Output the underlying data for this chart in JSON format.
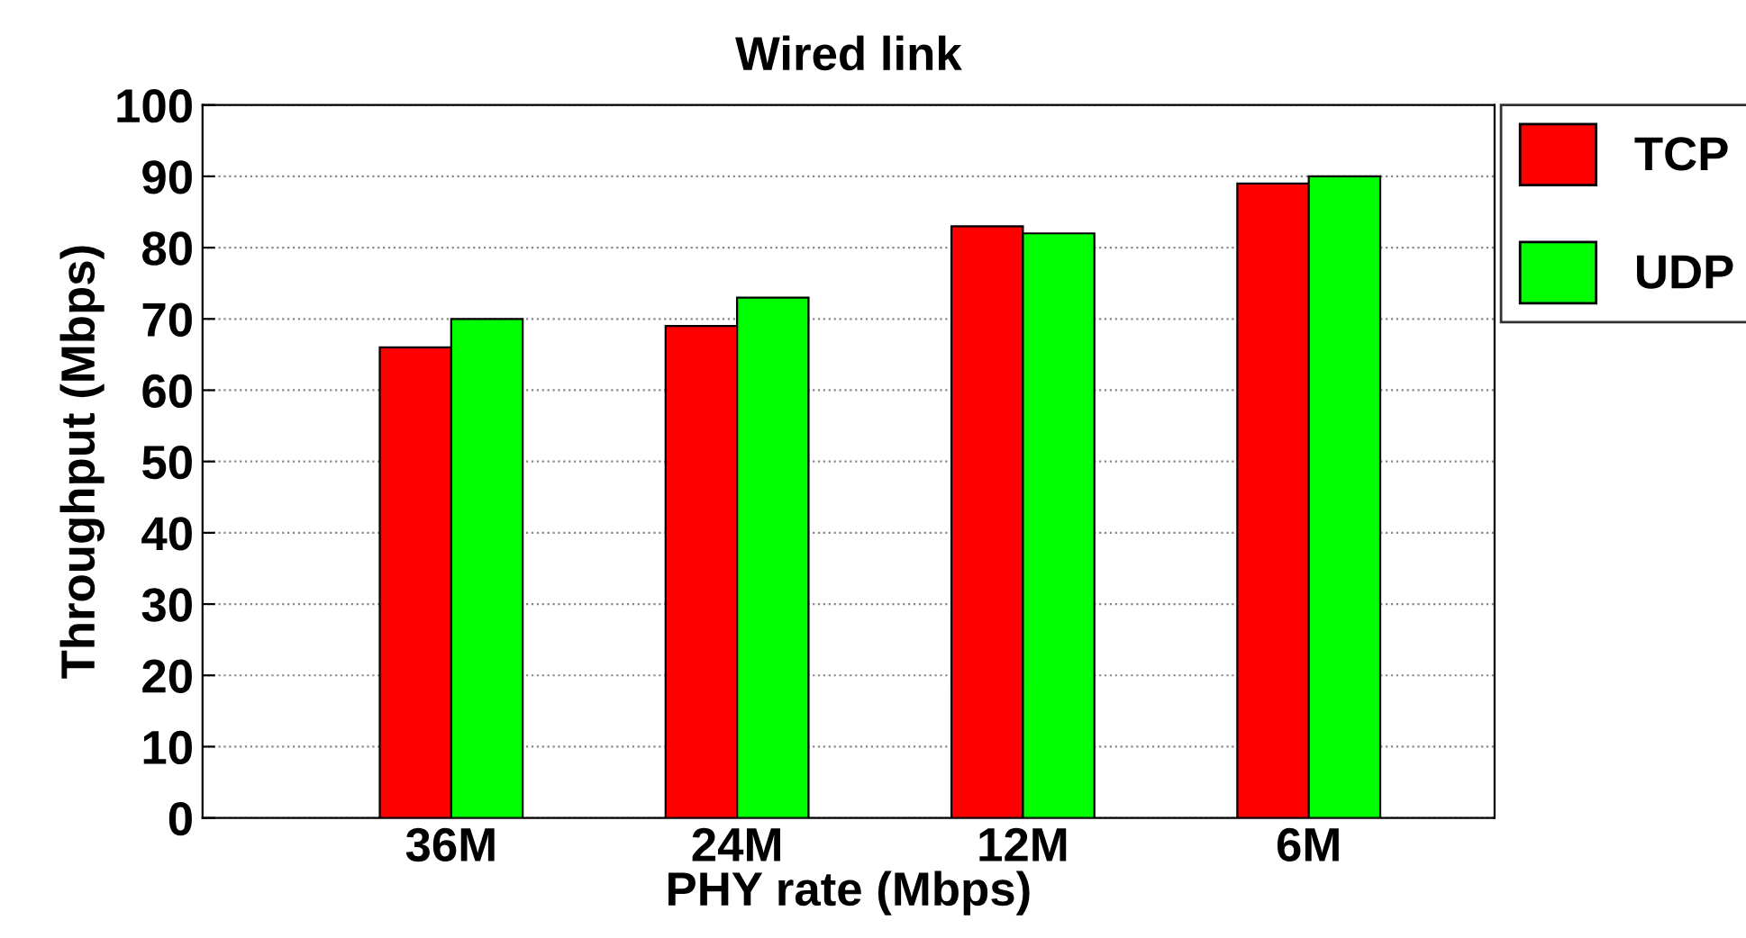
{
  "chart_data": {
    "type": "bar",
    "title": "Wired link",
    "xlabel": "PHY rate (Mbps)",
    "ylabel": "Throughput (Mbps)",
    "categories": [
      "36M",
      "24M",
      "12M",
      "6M"
    ],
    "series": [
      {
        "name": "TCP",
        "color": "#ff0000",
        "values": [
          66,
          69,
          83,
          89
        ]
      },
      {
        "name": "UDP",
        "color": "#00ff00",
        "values": [
          70,
          73,
          82,
          90
        ]
      }
    ],
    "ylim": [
      0,
      100
    ],
    "yticks": [
      0,
      10,
      20,
      30,
      40,
      50,
      60,
      70,
      80,
      90,
      100
    ],
    "grid": "y",
    "legend": "top right"
  }
}
